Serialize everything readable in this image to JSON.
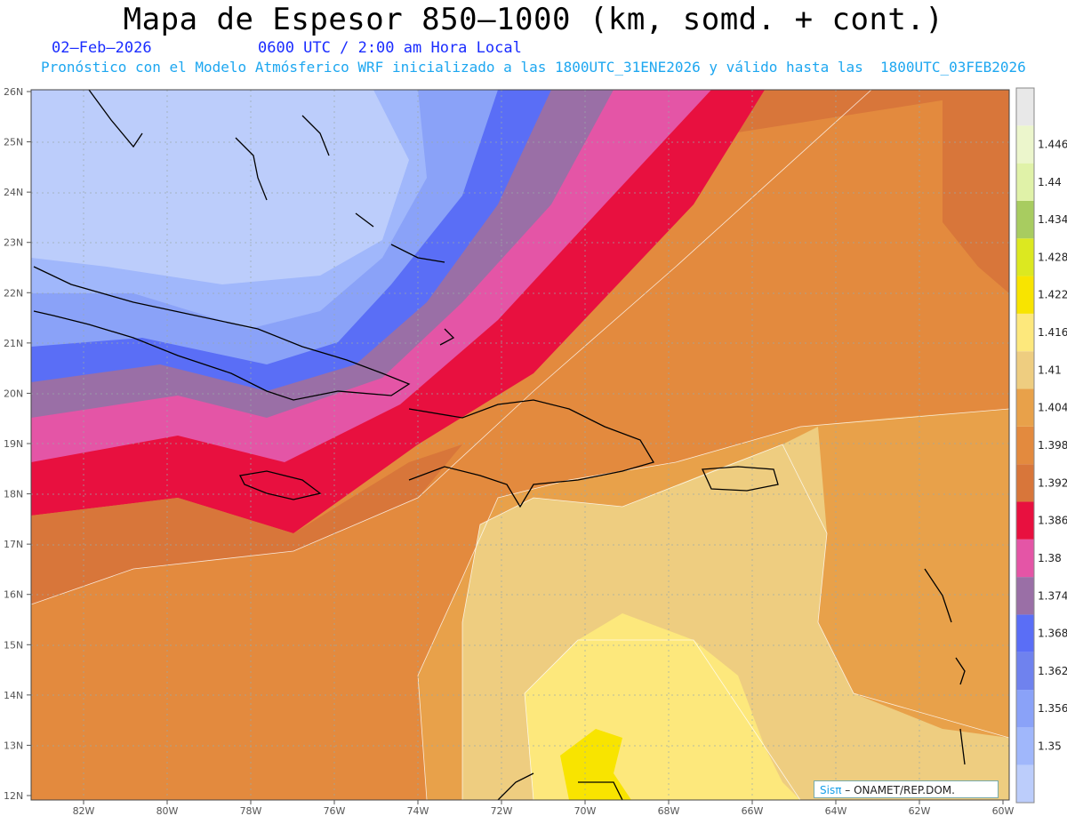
{
  "title": "Mapa de Espesor 850–1000 (km, somd. + cont.)",
  "date": "02–Feb–2026",
  "time": "0600 UTC / 2:00 am Hora Local",
  "forecast_line": "Pronóstico con el Modelo Atmósferico WRF inicializado a las 1800UTC_31ENE2026 y válido hasta las  1800UTC_03FEB2026",
  "credit_brand": "Sisπ",
  "credit_org": " – ONAMET/REP.DOM.",
  "lat_labels": [
    "26N",
    "25N",
    "24N",
    "23N",
    "22N",
    "21N",
    "20N",
    "19N",
    "18N",
    "17N",
    "16N",
    "15N",
    "14N",
    "13N",
    "12N"
  ],
  "lon_labels": [
    "82W",
    "80W",
    "78W",
    "76W",
    "74W",
    "72W",
    "70W",
    "68W",
    "66W",
    "64W",
    "62W",
    "60W"
  ],
  "colorbar": {
    "levels": [
      "1.35",
      "1.356",
      "1.362",
      "1.368",
      "1.374",
      "1.38",
      "1.386",
      "1.392",
      "1.398",
      "1.404",
      "1.41",
      "1.416",
      "1.422",
      "1.428",
      "1.434",
      "1.44",
      "1.446"
    ],
    "colors": [
      "#bccdfb",
      "#a0b7fb",
      "#8aa2f8",
      "#6f82ee",
      "#5a6ef6",
      "#9a6fa6",
      "#e455a6",
      "#e8103f",
      "#d8763a",
      "#e38a3e",
      "#e8a14a",
      "#eecd80",
      "#fde87c",
      "#f8e400",
      "#dce820",
      "#a8cc60",
      "#e0f2a8",
      "#ecf6cc",
      "#e8e8e8"
    ]
  }
}
